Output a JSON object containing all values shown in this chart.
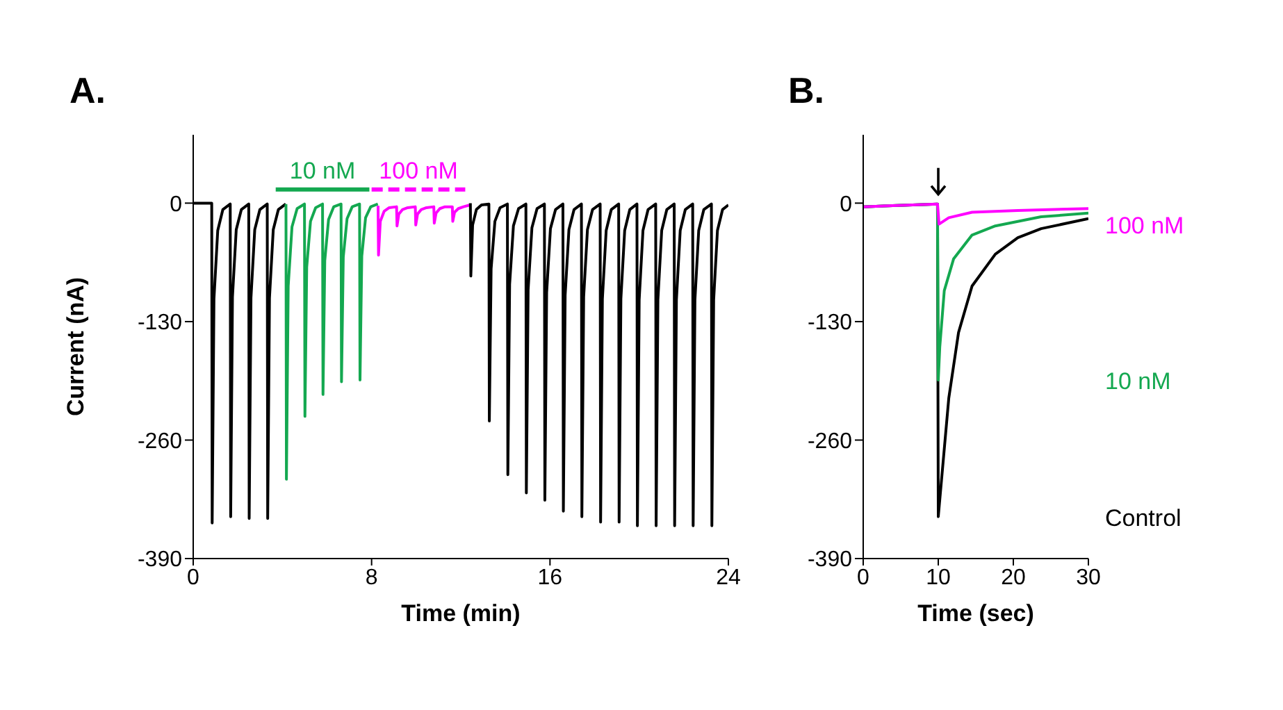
{
  "chart_data": [
    {
      "type": "line",
      "title": "A.",
      "xlabel": "Time (min)",
      "ylabel": "Current (nA)",
      "xlim": [
        0,
        24
      ],
      "xticks": [
        0,
        8,
        16,
        24
      ],
      "ylim": [
        -390,
        75
      ],
      "yticks": [
        0,
        -130,
        -260,
        -390
      ],
      "grid": false,
      "legend": false,
      "marker": "none",
      "series": [
        {
          "name": "10 nM",
          "color": "#14a850",
          "line_style": "solid",
          "x": [
            3.7,
            7.9
          ],
          "values": [
            15,
            15
          ]
        },
        {
          "name": "100 nM",
          "color": "#ff00ff",
          "line_style": "dashed",
          "x": [
            8.0,
            12.2
          ],
          "values": [
            15,
            15
          ]
        },
        {
          "color": "#000000",
          "x": [
            0,
            0.83,
            0.85,
            0.93,
            1.1,
            1.33,
            1.66,
            1.68,
            1.76,
            1.93,
            2.16,
            2.49,
            2.51,
            2.59,
            2.76,
            2.99,
            3.32,
            3.34,
            3.42,
            3.59,
            3.82,
            4.15
          ],
          "values": [
            0,
            0,
            -351,
            -105,
            -30,
            -7,
            -1,
            -344,
            -103,
            -29,
            -7,
            -1,
            -346,
            -104,
            -29,
            -7,
            -1,
            -346,
            -104,
            -29,
            -7,
            -1
          ]
        },
        {
          "color": "#14a850",
          "x": [
            4.16,
            4.18,
            4.26,
            4.43,
            4.66,
            4.99,
            5.01,
            5.09,
            5.26,
            5.49,
            5.8,
            5.82,
            5.9,
            6.07,
            6.3,
            6.63,
            6.65,
            6.73,
            6.9,
            7.13,
            7.46,
            7.48,
            7.56,
            7.73,
            7.96,
            8.28
          ],
          "values": [
            -1,
            -303,
            -91,
            -26,
            -6,
            -1,
            -234,
            -70,
            -20,
            -5,
            -1,
            -210,
            -63,
            -18,
            -4,
            -1,
            -196,
            -59,
            -17,
            -4,
            -1,
            -194,
            -58,
            -16,
            -4,
            -1
          ]
        },
        {
          "color": "#ff00ff",
          "x": [
            8.29,
            8.31,
            8.39,
            8.56,
            8.79,
            9.12,
            9.14,
            9.22,
            9.39,
            9.62,
            9.96,
            9.98,
            10.06,
            10.23,
            10.46,
            10.79,
            10.81,
            10.89,
            11.06,
            11.29,
            11.62,
            11.64,
            11.72,
            11.89,
            12.12,
            12.42
          ],
          "values": [
            -3,
            -57,
            -20,
            -9,
            -5,
            -4,
            -25,
            -12,
            -7,
            -5,
            -4,
            -24,
            -12,
            -7,
            -5,
            -4,
            -22,
            -11,
            -6,
            -4,
            -4,
            -20,
            -10,
            -6,
            -4,
            -2
          ]
        },
        {
          "color": "#000000",
          "x": [
            12.43,
            12.45,
            12.53,
            12.7,
            12.93,
            13.26,
            13.28,
            13.36,
            13.53,
            13.76,
            14.09,
            14.11,
            14.19,
            14.36,
            14.59,
            14.92,
            14.94,
            15.02,
            15.19,
            15.42,
            15.75,
            15.77,
            15.85,
            16.02,
            16.25,
            16.58,
            16.6,
            16.68,
            16.85,
            17.08,
            17.41,
            17.43,
            17.51,
            17.68,
            17.91,
            18.25,
            18.27,
            18.35,
            18.52,
            18.75,
            19.08,
            19.1,
            19.18,
            19.35,
            19.58,
            19.9,
            19.92,
            20,
            20.17,
            20.4,
            20.74,
            20.76,
            20.84,
            21.01,
            21.24,
            21.57,
            21.59,
            21.67,
            21.84,
            22.07,
            22.4,
            22.42,
            22.5,
            22.67,
            22.9,
            23.24,
            23.26,
            23.34,
            23.51,
            23.74,
            24
          ],
          "values": [
            0,
            -80,
            -24,
            -7,
            -2,
            -1,
            -239,
            -72,
            -20,
            -5,
            -1,
            -298,
            -89,
            -25,
            -6,
            -1,
            -318,
            -95,
            -27,
            -6,
            -1,
            -326,
            -98,
            -28,
            -7,
            -1,
            -338,
            -101,
            -29,
            -7,
            -1,
            -344,
            -103,
            -29,
            -7,
            -1,
            -350,
            -105,
            -30,
            -7,
            -1,
            -350,
            -105,
            -30,
            -7,
            -1,
            -354,
            -106,
            -30,
            -7,
            -1,
            -354,
            -106,
            -30,
            -7,
            -1,
            -354,
            -106,
            -30,
            -7,
            -1,
            -354,
            -106,
            -30,
            -7,
            -1,
            -354,
            -106,
            -30,
            -7,
            -2
          ]
        }
      ]
    },
    {
      "type": "line",
      "title": "B.",
      "xlabel": "Time (sec)",
      "xlim": [
        0,
        30
      ],
      "xticks": [
        0,
        10,
        20,
        30
      ],
      "ylim": [
        -390,
        75
      ],
      "yticks": [
        0,
        -130,
        -260,
        -390
      ],
      "grid": false,
      "legend": false,
      "marker": "none",
      "series": [
        {
          "name": "Control",
          "color": "#000000",
          "x": [
            0,
            9.9,
            10,
            11.4,
            12.7,
            14.5,
            17.6,
            20.6,
            23.7,
            30
          ],
          "values": [
            -4,
            -1,
            -344,
            -214,
            -142,
            -91,
            -56,
            -38,
            -28,
            -17
          ]
        },
        {
          "name": "10 nM",
          "color": "#14a850",
          "x": [
            0,
            9.9,
            10,
            10.2,
            10.8,
            12.05,
            14.5,
            17.6,
            23.7,
            30
          ],
          "values": [
            -4,
            -1,
            -194,
            -158,
            -96,
            -61,
            -35,
            -25,
            -15,
            -11
          ]
        },
        {
          "name": "100 nM",
          "color": "#ff00ff",
          "x": [
            0,
            9.9,
            10.1,
            11.4,
            14.5,
            20.6,
            30
          ],
          "values": [
            -4,
            -1,
            -23,
            -16,
            -10,
            -8,
            -6
          ]
        }
      ]
    }
  ]
}
